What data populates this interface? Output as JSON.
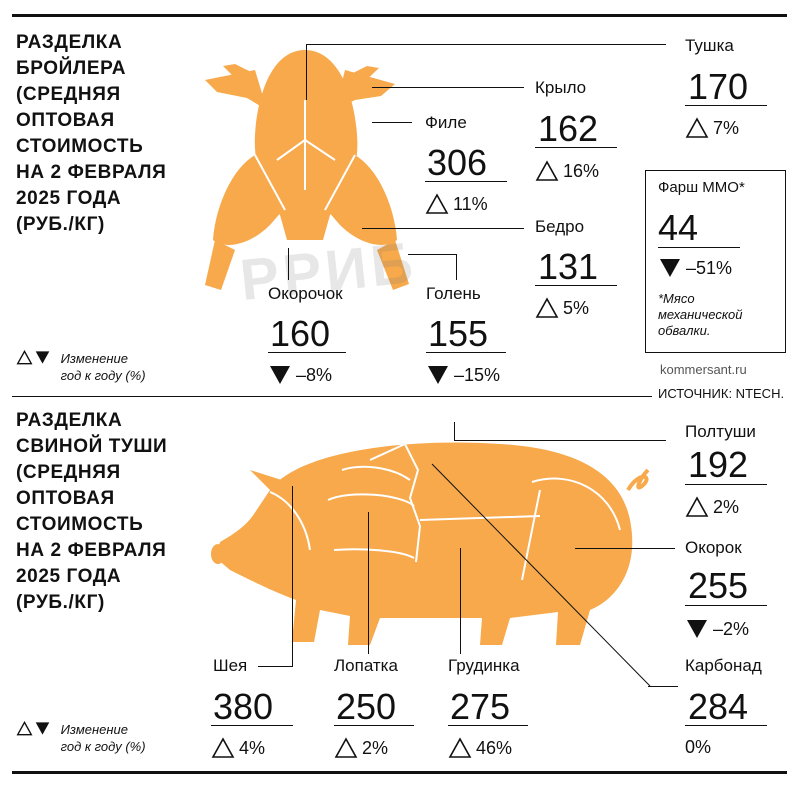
{
  "chicken": {
    "title": "РАЗДЕЛКА\nБРОЙЛЕРА\n(СРЕДНЯЯ\nОПТОВАЯ\nСТОИМОСТЬ\nНА 2 ФЕВРАЛЯ\n2025 ГОДА\n(РУБ./КГ)",
    "items": [
      {
        "label": "Тушка",
        "price": "170",
        "change": "7%",
        "direction": "up"
      },
      {
        "label": "Крыло",
        "price": "162",
        "change": "16%",
        "direction": "up"
      },
      {
        "label": "Филе",
        "price": "306",
        "change": "11%",
        "direction": "up"
      },
      {
        "label": "Бедро",
        "price": "131",
        "change": "5%",
        "direction": "up"
      },
      {
        "label": "Окорочок",
        "price": "160",
        "change": "–8%",
        "direction": "down"
      },
      {
        "label": "Голень",
        "price": "155",
        "change": "–15%",
        "direction": "down"
      }
    ],
    "farsh": {
      "label": "Фарш ММО*",
      "price": "44",
      "change": "–51%",
      "direction": "down",
      "note": "*Мясо\nмеханической\nобвалки."
    },
    "legend": "Изменение\nгод к году (%)"
  },
  "source": {
    "site": "kommersant.ru",
    "text": "ИСТОЧНИК: NTECH."
  },
  "watermark": "РРИБ",
  "pork": {
    "title": "РАЗДЕЛКА\nСВИНОЙ ТУШИ\n(СРЕДНЯЯ\nОПТОВАЯ\nСТОИМОСТЬ\nНА 2 ФЕВРАЛЯ\n2025 ГОДА\n(РУБ./КГ)",
    "items": [
      {
        "label": "Полтуши",
        "price": "192",
        "change": "2%",
        "direction": "up"
      },
      {
        "label": "Окорок",
        "price": "255",
        "change": "–2%",
        "direction": "down"
      },
      {
        "label": "Карбонад",
        "price": "284",
        "change": "0%",
        "direction": "none"
      },
      {
        "label": "Шея",
        "price": "380",
        "change": "4%",
        "direction": "up"
      },
      {
        "label": "Лопатка",
        "price": "250",
        "change": "2%",
        "direction": "up"
      },
      {
        "label": "Грудинка",
        "price": "275",
        "change": "46%",
        "direction": "up"
      }
    ],
    "legend": "Изменение\nгод к году (%)"
  },
  "colors": {
    "shape": "#f7a94b",
    "text": "#111111",
    "background": "#ffffff"
  }
}
